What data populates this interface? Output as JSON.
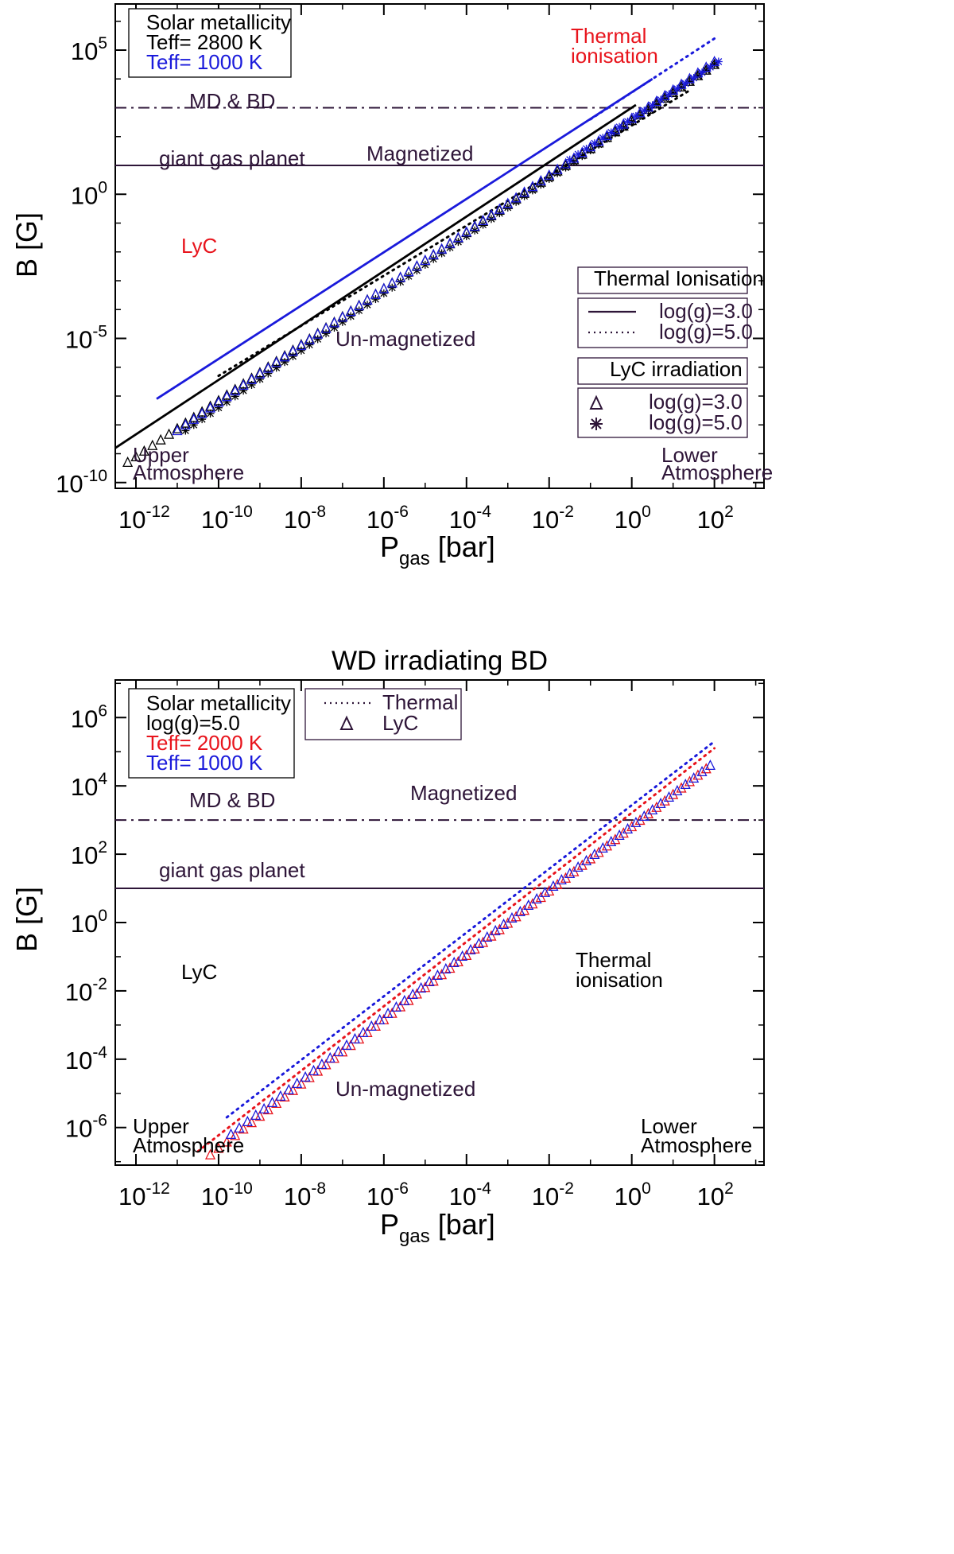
{
  "chart_data": [
    {
      "type": "scatter",
      "title": "",
      "xlabel": "P",
      "xlabel_sub": "gas",
      "xlabel_unit": "[bar]",
      "ylabel": "B [G]",
      "xscale": "log",
      "yscale": "log",
      "xlim_log10": [
        -12.5,
        3.2
      ],
      "ylim_log10": [
        -10.2,
        6.6
      ],
      "x_ticks": [
        {
          "base": "10",
          "exp": "-12"
        },
        {
          "base": "10",
          "exp": "-10"
        },
        {
          "base": "10",
          "exp": "-8"
        },
        {
          "base": "10",
          "exp": "-6"
        },
        {
          "base": "10",
          "exp": "-4"
        },
        {
          "base": "10",
          "exp": "-2"
        },
        {
          "base": "10",
          "exp": "0"
        },
        {
          "base": "10",
          "exp": "2"
        }
      ],
      "y_ticks": [
        {
          "base": "10",
          "exp": "-10"
        },
        {
          "base": "10",
          "exp": "-5"
        },
        {
          "base": "10",
          "exp": "0"
        },
        {
          "base": "10",
          "exp": "5"
        }
      ],
      "hlines": [
        {
          "name": "MD & BD",
          "y_log10": 3.0,
          "style": "dashdot",
          "label": "MD & BD"
        },
        {
          "name": "giant gas planet",
          "y_log10": 1.0,
          "style": "solid",
          "label": "giant gas planet"
        }
      ],
      "annotations": [
        {
          "text": "Thermal",
          "color": "#e8141c"
        },
        {
          "text": "ionisation",
          "color": "#e8141c"
        },
        {
          "text": "Magnetized",
          "color": "#2e1538"
        },
        {
          "text": "Un-magnetized",
          "color": "#2e1538"
        },
        {
          "text": "LyC",
          "color": "#e8141c"
        },
        {
          "text": "Upper",
          "color": "#2e1538"
        },
        {
          "text": "Atmosphere",
          "color": "#2e1538"
        },
        {
          "text": "Lower",
          "color": "#2e1538"
        },
        {
          "text": "Atmosphere",
          "color": "#2e1538"
        }
      ],
      "info_box": [
        {
          "text": "Solar metallicity",
          "color": "#000000"
        },
        {
          "text": "Teff= 2800 K",
          "color": "#000000"
        },
        {
          "text": "Teff= 1000 K",
          "color": "#1a1adb"
        }
      ],
      "legend_thermal": {
        "title": "Thermal Ionisation",
        "entries": [
          {
            "label": "log(g)=3.0",
            "style": "solid"
          },
          {
            "label": "log(g)=5.0",
            "style": "dotted"
          }
        ]
      },
      "legend_lyc": {
        "title": "LyC irradiation",
        "entries": [
          {
            "label": "log(g)=3.0",
            "marker": "triangle"
          },
          {
            "label": "log(g)=5.0",
            "marker": "asterisk"
          }
        ]
      },
      "series": [
        {
          "name": "Thermal, Teff=2800 K, log(g)=3.0",
          "kind": "line",
          "style": "solid",
          "color": "#000000",
          "x_log10": [
            -12.5,
            0.1
          ],
          "y_log10": [
            -8.8,
            3.1
          ]
        },
        {
          "name": "Thermal, Teff=2800 K, log(g)=5.0",
          "kind": "line",
          "style": "dotted",
          "color": "#000000",
          "x_log10": [
            -10.0,
            1.4
          ],
          "y_log10": [
            -6.3,
            3.6
          ]
        },
        {
          "name": "Thermal, Teff=1000 K, log(g)=3.0",
          "kind": "line",
          "style": "solid",
          "color": "#1a1adb",
          "x_log10": [
            -11.5,
            0.5
          ],
          "y_log10": [
            -7.1,
            4.0
          ]
        },
        {
          "name": "Thermal, Teff=1000 K, log(g)=5.0",
          "kind": "line",
          "style": "dotted",
          "color": "#1a1adb",
          "x_log10": [
            -1.0,
            2.0
          ],
          "y_log10": [
            2.6,
            5.4
          ]
        },
        {
          "name": "LyC, Teff=2800 K, log(g)=3.0",
          "kind": "markers",
          "marker": "triangle",
          "color": "#000000",
          "x_log10_range": [
            -12.2,
            1.9
          ],
          "y_log10_range": [
            -9.3,
            4.5
          ],
          "step": 0.2
        },
        {
          "name": "LyC, Teff=2800 K, log(g)=5.0",
          "kind": "markers",
          "marker": "asterisk",
          "color": "#000000",
          "x_log10_range": [
            -10.8,
            1.9
          ],
          "y_log10_range": [
            -8.2,
            4.5
          ],
          "step": 0.2
        },
        {
          "name": "LyC, Teff=1000 K, log(g)=3.0",
          "kind": "markers",
          "marker": "triangle",
          "color": "#1a1adb",
          "x_log10_range": [
            -11.0,
            2.0
          ],
          "y_log10_range": [
            -8.2,
            4.6
          ],
          "step": 0.2
        },
        {
          "name": "LyC, Teff=1000 K, log(g)=5.0",
          "kind": "markers",
          "marker": "asterisk",
          "color": "#1a1adb",
          "x_log10_range": [
            -1.5,
            2.0
          ],
          "y_log10_range": [
            1.2,
            4.6
          ],
          "step": 0.2
        }
      ]
    },
    {
      "type": "scatter",
      "title": "WD irradiating BD",
      "xlabel": "P",
      "xlabel_sub": "gas",
      "xlabel_unit": "[bar]",
      "ylabel": "B [G]",
      "xscale": "log",
      "yscale": "log",
      "xlim_log10": [
        -12.5,
        3.2
      ],
      "ylim_log10": [
        -7.1,
        7.1
      ],
      "x_ticks": [
        {
          "base": "10",
          "exp": "-12"
        },
        {
          "base": "10",
          "exp": "-10"
        },
        {
          "base": "10",
          "exp": "-8"
        },
        {
          "base": "10",
          "exp": "-6"
        },
        {
          "base": "10",
          "exp": "-4"
        },
        {
          "base": "10",
          "exp": "-2"
        },
        {
          "base": "10",
          "exp": "0"
        },
        {
          "base": "10",
          "exp": "2"
        }
      ],
      "y_ticks": [
        {
          "base": "10",
          "exp": "-6"
        },
        {
          "base": "10",
          "exp": "-4"
        },
        {
          "base": "10",
          "exp": "-2"
        },
        {
          "base": "10",
          "exp": "0"
        },
        {
          "base": "10",
          "exp": "2"
        },
        {
          "base": "10",
          "exp": "4"
        },
        {
          "base": "10",
          "exp": "6"
        }
      ],
      "hlines": [
        {
          "name": "MD & BD",
          "y_log10": 3.0,
          "style": "dashdot",
          "label": "MD & BD"
        },
        {
          "name": "giant gas planet",
          "y_log10": 1.0,
          "style": "solid",
          "label": "giant gas planet"
        }
      ],
      "annotations": [
        {
          "text": "Magnetized",
          "color": "#2e1538"
        },
        {
          "text": "Un-magnetized",
          "color": "#2e1538"
        },
        {
          "text": "LyC",
          "color": "#000000"
        },
        {
          "text": "Thermal",
          "color": "#000000"
        },
        {
          "text": "ionisation",
          "color": "#000000"
        },
        {
          "text": "Upper",
          "color": "#000000"
        },
        {
          "text": "Atmosphere",
          "color": "#000000"
        },
        {
          "text": "Lower",
          "color": "#000000"
        },
        {
          "text": "Atmosphere",
          "color": "#000000"
        }
      ],
      "info_box": [
        {
          "text": "Solar metallicity",
          "color": "#000000"
        },
        {
          "text": "log(g)=5.0",
          "color": "#000000"
        },
        {
          "text": "Teff= 2000 K",
          "color": "#e8141c"
        },
        {
          "text": "Teff= 1000 K",
          "color": "#1a1adb"
        }
      ],
      "legend_main": {
        "entries": [
          {
            "label": "Thermal",
            "style": "dotted"
          },
          {
            "label": "LyC",
            "marker": "triangle"
          }
        ]
      },
      "series": [
        {
          "name": "Thermal, Teff=2000 K",
          "kind": "line",
          "style": "dotted",
          "color": "#e8141c",
          "x_log10": [
            -10.5,
            2.0
          ],
          "y_log10": [
            -6.7,
            5.1
          ]
        },
        {
          "name": "Thermal, Teff=1000 K",
          "kind": "line",
          "style": "dotted",
          "color": "#1a1adb",
          "x_log10": [
            -9.8,
            2.0
          ],
          "y_log10": [
            -5.7,
            5.3
          ]
        },
        {
          "name": "LyC, Teff=2000 K",
          "kind": "markers",
          "marker": "triangle",
          "color": "#e8141c",
          "x_log10_range": [
            -10.2,
            1.9
          ],
          "y_log10_range": [
            -6.8,
            4.5
          ],
          "step": 0.2
        },
        {
          "name": "LyC, Teff=1000 K",
          "kind": "markers",
          "marker": "triangle",
          "color": "#1a1adb",
          "x_log10_range": [
            -9.7,
            1.9
          ],
          "y_log10_range": [
            -6.2,
            4.6
          ],
          "step": 0.2
        }
      ]
    }
  ]
}
